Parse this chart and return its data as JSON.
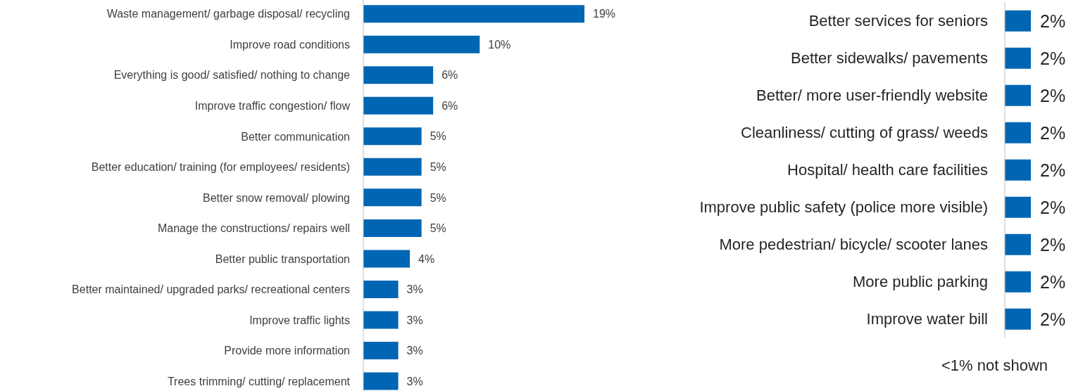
{
  "chart_data": [
    {
      "type": "bar",
      "orientation": "horizontal",
      "categories": [
        "Waste management/ garbage disposal/ recycling",
        "Improve road conditions",
        "Everything is good/ satisfied/ nothing to change",
        "Improve traffic congestion/ flow",
        "Better communication",
        "Better education/ training (for employees/ residents)",
        "Better snow removal/ plowing",
        "Manage the constructions/ repairs well",
        "Better public transportation",
        "Better maintained/ upgraded parks/ recreational centers",
        "Improve traffic lights",
        "Provide more information",
        "Trees trimming/ cutting/ replacement"
      ],
      "values": [
        19,
        10,
        6,
        6,
        5,
        5,
        5,
        5,
        4,
        3,
        3,
        3,
        3
      ],
      "color": "#0066b3",
      "value_labels": [
        "19%",
        "10%",
        "6%",
        "6%",
        "5%",
        "5%",
        "5%",
        "5%",
        "4%",
        "3%",
        "3%",
        "3%",
        "3%"
      ]
    },
    {
      "type": "bar",
      "orientation": "horizontal",
      "categories": [
        "Better services for seniors",
        "Better sidewalks/ pavements",
        "Better/ more user-friendly website",
        "Cleanliness/ cutting of grass/ weeds",
        "Hospital/ health care facilities",
        "Improve public safety (police more visible)",
        "More pedestrian/ bicycle/ scooter lanes",
        "More public parking",
        "Improve water bill"
      ],
      "values": [
        2,
        2,
        2,
        2,
        2,
        2,
        2,
        2,
        2
      ],
      "color": "#0066b3",
      "value_labels": [
        "2%",
        "2%",
        "2%",
        "2%",
        "2%",
        "2%",
        "2%",
        "2%",
        "2%"
      ],
      "annotations": [
        "<1% not shown"
      ]
    }
  ]
}
